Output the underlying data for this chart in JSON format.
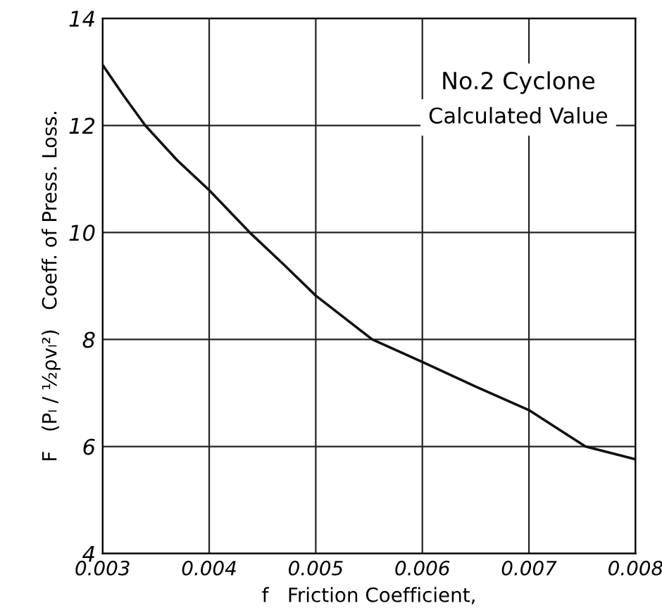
{
  "chart_data": {
    "type": "line",
    "xlabel": "f   Friction Coefficient,",
    "ylabel": "F   (Pₗ / ½ρvₗ²)   Coeff. of Press. Loss.",
    "annotations": [
      "No.2 Cyclone",
      "Calculated Value"
    ],
    "x": [
      0.003,
      0.0032,
      0.0034,
      0.0037,
      0.004,
      0.00438,
      0.0047,
      0.005,
      0.00553,
      0.006,
      0.0065,
      0.007,
      0.00753,
      0.008
    ],
    "series": [
      {
        "color": "#111111",
        "values": [
          13.13,
          12.55,
          12,
          11.35,
          10.79,
          10,
          9.4,
          8.82,
          8,
          7.58,
          7.12,
          6.68,
          6,
          5.76
        ]
      }
    ],
    "xlim": [
      0.003,
      0.008
    ],
    "xticks": [
      0.003,
      0.004,
      0.005,
      0.006,
      0.007,
      0.008
    ],
    "ylim": [
      4,
      14
    ],
    "yticks": [
      4,
      6,
      8,
      10,
      12,
      14
    ],
    "grid": true,
    "marker": "none",
    "line_style": "solid"
  }
}
